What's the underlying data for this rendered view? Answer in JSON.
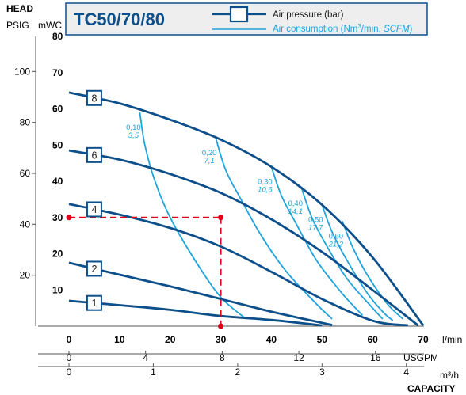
{
  "chart_data": {
    "type": "line",
    "title": "TC50/70/80",
    "axes": {
      "y_header": "HEAD",
      "y_left_unit": "PSIG",
      "y_right_unit": "mWC",
      "y_mwc_ticks": [
        10,
        20,
        30,
        40,
        50,
        60,
        70,
        80
      ],
      "y_psig_ticks": [
        20,
        40,
        60,
        80,
        100
      ],
      "x_lmin_ticks": [
        0,
        10,
        20,
        30,
        40,
        50,
        60,
        70
      ],
      "x_lmin_unit": "l/min",
      "x_usgpm_ticks": [
        0,
        4,
        8,
        12,
        16
      ],
      "x_usgpm_unit": "USGPM",
      "x_m3h_ticks": [
        0,
        1,
        2,
        3,
        4
      ],
      "x_m3h_unit": "m³/h",
      "x_footer": "CAPACITY",
      "xlim_lmin": [
        0,
        70
      ],
      "ylim_mwc": [
        0,
        80
      ]
    },
    "legend": [
      {
        "label": "Air pressure (bar)",
        "color": "#0d4f8b"
      },
      {
        "label_main": "Air consumption (Nm",
        "label_sup": "3",
        "label_rest": "/min, ",
        "label_it": "SCFM",
        "label_end": ")",
        "color": "#1fa3dc"
      }
    ],
    "pressure_curves": [
      {
        "label": "1",
        "points": [
          [
            0,
            7
          ],
          [
            10,
            5.8
          ],
          [
            20,
            4.5
          ],
          [
            30,
            2.8
          ],
          [
            40,
            1.7
          ],
          [
            50,
            0.2
          ]
        ]
      },
      {
        "label": "2",
        "points": [
          [
            0,
            17.5
          ],
          [
            10,
            14.2
          ],
          [
            20,
            11
          ],
          [
            30,
            7.5
          ],
          [
            40,
            4
          ],
          [
            52,
            0.3
          ]
        ]
      },
      {
        "label": "4",
        "points": [
          [
            0,
            33.7
          ],
          [
            10,
            30.8
          ],
          [
            20,
            27.1
          ],
          [
            30,
            22
          ],
          [
            40,
            15
          ],
          [
            50,
            7.5
          ],
          [
            60,
            1.5
          ],
          [
            67,
            0.2
          ]
        ]
      },
      {
        "label": "6",
        "points": [
          [
            0,
            48.5
          ],
          [
            10,
            46
          ],
          [
            20,
            42
          ],
          [
            30,
            36.8
          ],
          [
            40,
            29.5
          ],
          [
            50,
            20.5
          ],
          [
            60,
            10
          ],
          [
            69,
            0.2
          ]
        ]
      },
      {
        "label": "8",
        "points": [
          [
            0,
            64.5
          ],
          [
            10,
            61.5
          ],
          [
            20,
            57
          ],
          [
            30,
            51.5
          ],
          [
            40,
            44
          ],
          [
            50,
            33.5
          ],
          [
            60,
            19
          ],
          [
            70,
            0.2
          ]
        ]
      }
    ],
    "air_consumption_curves": [
      {
        "bar": "0,10",
        "scfm": "3,5",
        "points": [
          [
            14,
            59
          ],
          [
            15,
            50
          ],
          [
            17,
            40
          ],
          [
            20,
            30
          ],
          [
            25,
            18
          ],
          [
            30,
            8
          ],
          [
            35,
            2
          ]
        ]
      },
      {
        "bar": "0,20",
        "scfm": "7,1",
        "points": [
          [
            29,
            52
          ],
          [
            31,
            43
          ],
          [
            34,
            35
          ],
          [
            38,
            25
          ],
          [
            43,
            15
          ],
          [
            49,
            6
          ],
          [
            52,
            2
          ]
        ]
      },
      {
        "bar": "0,30",
        "scfm": "10,6",
        "points": [
          [
            40,
            44
          ],
          [
            42,
            36
          ],
          [
            45,
            28
          ],
          [
            49,
            18
          ],
          [
            54,
            9
          ],
          [
            58,
            3
          ]
        ]
      },
      {
        "bar": "0,40",
        "scfm": "14,1",
        "points": [
          [
            46,
            38
          ],
          [
            48,
            30
          ],
          [
            51,
            22
          ],
          [
            55,
            13
          ],
          [
            60,
            5
          ],
          [
            62,
            2
          ]
        ]
      },
      {
        "bar": "0,50",
        "scfm": "17,7",
        "points": [
          [
            50,
            33.5
          ],
          [
            52,
            26
          ],
          [
            55,
            18
          ],
          [
            59,
            9
          ],
          [
            62,
            4
          ],
          [
            64,
            1.5
          ]
        ]
      },
      {
        "bar": "0,60",
        "scfm": "21,2",
        "points": [
          [
            54,
            29
          ],
          [
            56,
            22
          ],
          [
            59,
            14
          ],
          [
            63,
            6
          ],
          [
            66,
            2
          ]
        ]
      }
    ],
    "operating_point": {
      "flow_lmin": 30,
      "head_mwc": 30,
      "color": "#e0001b"
    }
  }
}
